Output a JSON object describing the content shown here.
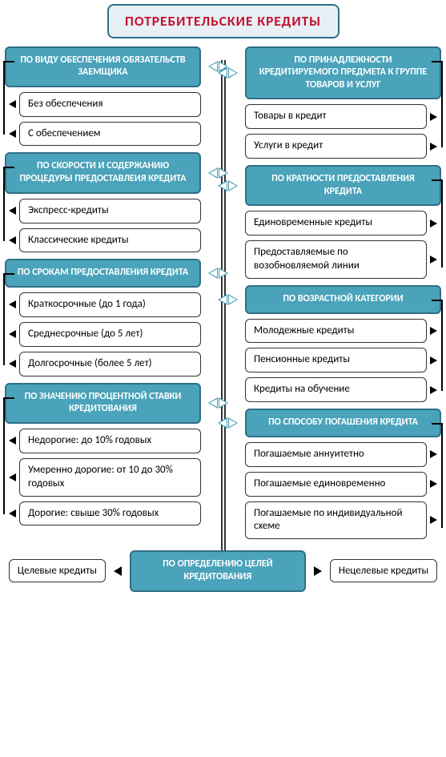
{
  "colors": {
    "title_bg": "#e8f0f5",
    "title_border": "#2f6f86",
    "title_text": "#c4122f",
    "cat_bg": "#4aa3ba",
    "cat_border": "#2f6f86",
    "cat_text": "#ffffff",
    "item_border": "#333333",
    "item_text": "#000000",
    "arrow_outline": "#4a9db5",
    "arrow_solid": "#000000",
    "trunk": "#333333",
    "page_bg": "#ffffff"
  },
  "title": "ПОТРЕБИТЕЛЬСКИЕ КРЕДИТЫ",
  "title_fontsize_pt": 13,
  "cat_fontsize_pt": 11,
  "item_fontsize_pt": 11,
  "flowchart": {
    "type": "flowchart",
    "left": [
      {
        "category": "ПО ВИДУ ОБЕСПЕЧЕНИЯ ОБЯЗАТЕЛЬСТВ ЗАЕМЩИКА",
        "items": [
          "Без обеспечения",
          "С обеспечением"
        ]
      },
      {
        "category": "ПО СКОРОСТИ И СОДЕРЖАНИЮ ПРОЦЕДУРЫ ПРЕДОСТАВЛЕИЯ КРЕДИТА",
        "items": [
          "Экспресс-кредиты",
          "Классические кредиты"
        ]
      },
      {
        "category": "ПО СРОКАМ ПРЕДОСТАВЛЕНИЯ КРЕДИТА",
        "items": [
          "Краткосрочные (до 1 года)",
          "Среднесрочные (до 5 лет)",
          "Долгосрочные (более 5 лет)"
        ]
      },
      {
        "category": "ПО ЗНАЧЕНИЮ ПРОЦЕНТНОЙ СТАВКИ КРЕДИТОВАНИЯ",
        "items": [
          "Недорогие: до 10% годовых",
          "Умеренно дорогие: от 10 до 30% годовых",
          "Дорогие: свыше 30% годовых"
        ]
      }
    ],
    "right": [
      {
        "category": "ПО ПРИНАДЛЕЖНОСТИ КРЕДИТИРУЕМОГО ПРЕДМЕТА К ГРУППЕ ТОВАРОВ И УСЛУГ",
        "items": [
          "Товары в кредит",
          "Услуги в кредит"
        ]
      },
      {
        "category": "ПО КРАТНОСТИ ПРЕДОСТАВЛЕНИЯ КРЕДИТА",
        "items": [
          "Единовременные кредиты",
          "Предоставляемые по возобновляемой линии"
        ]
      },
      {
        "category": "ПО ВОЗРАСТНОЙ КАТЕГОРИИ",
        "items": [
          "Молодежные кредиты",
          "Пенсионные кредиты",
          "Кредиты на обучение"
        ]
      },
      {
        "category": "ПО СПОСОБУ ПОГАШЕНИЯ КРЕДИТА",
        "items": [
          "Погашаемые аннуитетно",
          "Погашаемые единовременно",
          "Погашаемые по индивидуальной схеме"
        ]
      }
    ],
    "bottom": {
      "category": "ПО ОПРЕДЕЛЕНИЮ ЦЕЛЕЙ КРЕДИТОВАНИЯ",
      "left_item": "Целевые кредиты",
      "right_item": "Нецелевые кредиты"
    }
  }
}
